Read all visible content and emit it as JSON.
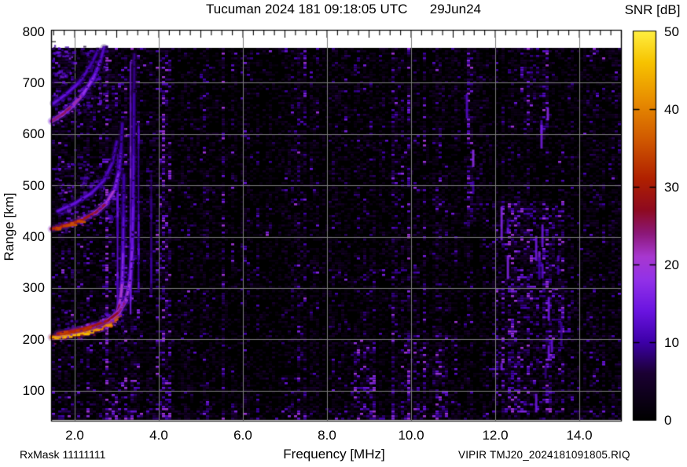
{
  "header": {
    "title": "Tucuman 2024 181 09:18:05 UTC      29Jun24",
    "colorbar_title": "SNR [dB]"
  },
  "footer": {
    "rx_mask": "RxMask 11111111",
    "file_label": "VIPIR  TMJ20_2024181091805.RIQ"
  },
  "axes": {
    "x": {
      "label": "Frequency [MHz]",
      "ticks": [
        {
          "label": "2.0",
          "value": 2.0
        },
        {
          "label": "4.0",
          "value": 4.0
        },
        {
          "label": "6.0",
          "value": 6.0
        },
        {
          "label": "8.0",
          "value": 8.0
        },
        {
          "label": "10.0",
          "value": 10.0
        },
        {
          "label": "12.0",
          "value": 12.0
        },
        {
          "label": "14.0",
          "value": 14.0
        }
      ]
    },
    "y": {
      "label": "Range [km]",
      "ticks": [
        {
          "label": "800",
          "value": 800
        },
        {
          "label": "700",
          "value": 700
        },
        {
          "label": "600",
          "value": 600
        },
        {
          "label": "500",
          "value": 500
        },
        {
          "label": "400",
          "value": 400
        },
        {
          "label": "300",
          "value": 300
        },
        {
          "label": "200",
          "value": 200
        },
        {
          "label": "100",
          "value": 100
        }
      ]
    }
  },
  "colorbar": {
    "label": "SNR [dB]",
    "min": 0,
    "max": 50,
    "ticks": [
      {
        "label": "50",
        "value": 50
      },
      {
        "label": "40",
        "value": 40
      },
      {
        "label": "30",
        "value": 30
      },
      {
        "label": "20",
        "value": 20
      },
      {
        "label": "10",
        "value": 10
      },
      {
        "label": "0",
        "value": 0
      }
    ],
    "palette": [
      [
        0,
        "#000000"
      ],
      [
        6,
        "#1b0033"
      ],
      [
        10,
        "#3d00a8"
      ],
      [
        14,
        "#6a14e0"
      ],
      [
        18,
        "#9231e8"
      ],
      [
        21,
        "#a838d0"
      ],
      [
        24,
        "#8c1878"
      ],
      [
        27,
        "#8e0a20"
      ],
      [
        31,
        "#b02000"
      ],
      [
        36,
        "#d05800"
      ],
      [
        41,
        "#e88c00"
      ],
      [
        46,
        "#f7c300"
      ],
      [
        50,
        "#ffee40"
      ]
    ]
  },
  "chart_data": {
    "type": "heatmap",
    "title": "Tucuman 2024 181 09:18:05 UTC 29Jun24",
    "xlabel": "Frequency [MHz]",
    "ylabel": "Range [km]",
    "zlabel": "SNR [dB]",
    "xlim": [
      1.44,
      15.04
    ],
    "ylim": [
      40,
      803
    ],
    "zlim": [
      0,
      50
    ],
    "grid": {
      "x_every_mhz": 2,
      "y_every_km": 100,
      "color": "#7d7d7d"
    },
    "traces": [
      {
        "name": "F-region-hop1-O",
        "points": [
          [
            1.45,
            204
          ],
          [
            1.8,
            207
          ],
          [
            2.2,
            212
          ],
          [
            2.6,
            221
          ],
          [
            2.85,
            232
          ],
          [
            3.0,
            248
          ],
          [
            3.08,
            270
          ],
          [
            3.13,
            310
          ],
          [
            3.15,
            370
          ],
          [
            3.16,
            440
          ],
          [
            3.17,
            520
          ]
        ],
        "snr": [
          42,
          44,
          43,
          40,
          36,
          30,
          24,
          18,
          14,
          11,
          9
        ]
      },
      {
        "name": "F-region-hop1-X",
        "points": [
          [
            1.6,
            211
          ],
          [
            2.0,
            217
          ],
          [
            2.4,
            225
          ],
          [
            2.8,
            237
          ],
          [
            3.05,
            253
          ],
          [
            3.22,
            276
          ],
          [
            3.32,
            315
          ],
          [
            3.37,
            380
          ],
          [
            3.39,
            460
          ],
          [
            3.4,
            560
          ],
          [
            3.41,
            680
          ],
          [
            3.42,
            755
          ]
        ],
        "snr": [
          30,
          32,
          30,
          28,
          26,
          22,
          18,
          15,
          13,
          11,
          9,
          8
        ]
      },
      {
        "name": "F-region-hop2",
        "points": [
          [
            1.45,
            415
          ],
          [
            1.8,
            422
          ],
          [
            2.15,
            432
          ],
          [
            2.5,
            447
          ],
          [
            2.75,
            465
          ],
          [
            2.95,
            492
          ],
          [
            3.05,
            525
          ],
          [
            3.1,
            565
          ],
          [
            3.13,
            620
          ]
        ],
        "snr": [
          30,
          33,
          31,
          28,
          24,
          18,
          14,
          11,
          9
        ]
      },
      {
        "name": "F-region-hop2-upper",
        "points": [
          [
            1.6,
            450
          ],
          [
            2.0,
            465
          ],
          [
            2.4,
            485
          ],
          [
            2.7,
            510
          ],
          [
            2.9,
            545
          ],
          [
            3.0,
            585
          ]
        ],
        "snr": [
          13,
          14,
          13,
          12,
          11,
          10
        ]
      },
      {
        "name": "F-region-hop3",
        "points": [
          [
            1.45,
            625
          ],
          [
            1.7,
            638
          ],
          [
            1.95,
            655
          ],
          [
            2.2,
            678
          ],
          [
            2.45,
            710
          ],
          [
            2.6,
            740
          ],
          [
            2.7,
            768
          ]
        ],
        "snr": [
          22,
          26,
          24,
          20,
          16,
          13,
          11
        ]
      },
      {
        "name": "F-region-hop3-upper",
        "points": [
          [
            1.5,
            660
          ],
          [
            1.8,
            678
          ],
          [
            2.1,
            700
          ],
          [
            2.35,
            730
          ],
          [
            2.55,
            762
          ]
        ],
        "snr": [
          13,
          14,
          12,
          11,
          10
        ]
      }
    ],
    "critical_frequency_streaks": [
      {
        "freq": 3.02,
        "range": [
          260,
          560
        ],
        "snr": 13
      },
      {
        "freq": 3.33,
        "range": [
          250,
          740
        ],
        "snr": 16
      },
      {
        "freq": 3.52,
        "range": [
          300,
          620
        ],
        "snr": 10
      },
      {
        "freq": 3.82,
        "range": [
          290,
          520
        ],
        "snr": 8
      }
    ],
    "spread_clouds": [
      {
        "name": "hop1-spread",
        "freq": [
          1.5,
          3.2
        ],
        "range": [
          210,
          262
        ],
        "snr": 12,
        "density": 0.35
      },
      {
        "name": "hop2-spread",
        "freq": [
          1.5,
          3.1
        ],
        "range": [
          430,
          545
        ],
        "snr": 14,
        "density": 0.5
      },
      {
        "name": "hop3-spread",
        "freq": [
          1.5,
          2.8
        ],
        "range": [
          640,
          775
        ],
        "snr": 14,
        "density": 0.55
      },
      {
        "name": "topleft-clump",
        "freq": [
          1.45,
          2.0
        ],
        "range": [
          700,
          770
        ],
        "snr": 16,
        "density": 0.5
      }
    ],
    "noise_regions": [
      {
        "name": "low-freq-noise",
        "freq": [
          1.44,
          4.3
        ],
        "range": [
          40,
          780
        ],
        "gain": 1.7
      },
      {
        "name": "bottom-rows",
        "freq": [
          1.44,
          15.04
        ],
        "range": [
          40,
          70
        ],
        "gain": 1.6
      },
      {
        "name": "interference-main",
        "freq": [
          11.9,
          13.6
        ],
        "range": [
          60,
          470
        ],
        "gain": 2.6,
        "streaky": true
      },
      {
        "name": "interference-column",
        "freq": [
          11.3,
          11.65
        ],
        "range": [
          430,
          780
        ],
        "gain": 2.2,
        "streaky": true
      },
      {
        "name": "interference-top",
        "freq": [
          12.55,
          13.25
        ],
        "range": [
          590,
          780
        ],
        "gain": 1.9,
        "streaky": true
      },
      {
        "name": "noise-9mhz",
        "freq": [
          8.5,
          9.15
        ],
        "range": [
          45,
          200
        ],
        "gain": 2.3
      },
      {
        "name": "noise-10mhz",
        "freq": [
          9.8,
          10.85
        ],
        "range": [
          45,
          215
        ],
        "gain": 1.9
      }
    ]
  }
}
